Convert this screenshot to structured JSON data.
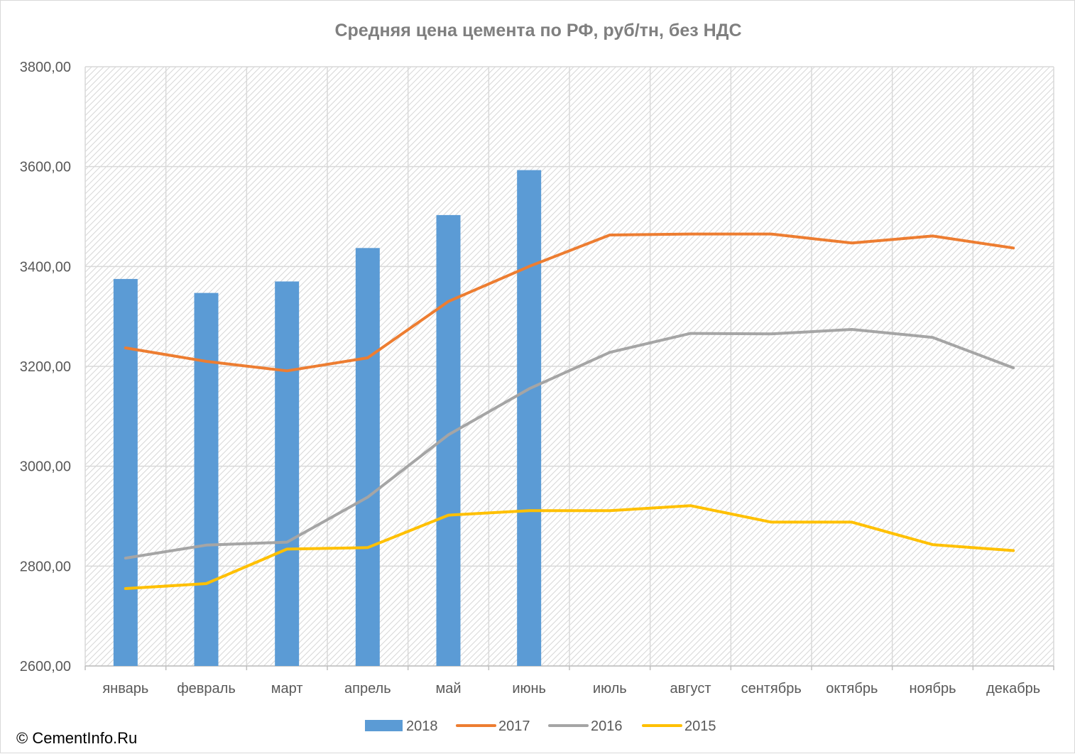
{
  "chart_data": {
    "type": "bar+line",
    "title": "Средняя цена цемента по РФ, руб/тн, без НДС",
    "xlabel": "",
    "ylabel": "",
    "ylim": [
      2600,
      3800
    ],
    "yticks": [
      "2600,00",
      "2800,00",
      "3000,00",
      "3200,00",
      "3400,00",
      "3600,00",
      "3800,00"
    ],
    "ytick_values": [
      2600,
      2800,
      3000,
      3200,
      3400,
      3600,
      3800
    ],
    "categories": [
      "январь",
      "февраль",
      "март",
      "апрель",
      "май",
      "июнь",
      "июль",
      "август",
      "сентябрь",
      "октябрь",
      "ноябрь",
      "декабрь"
    ],
    "grid": true,
    "legend_position": "bottom",
    "series": [
      {
        "name": "2018",
        "kind": "bar",
        "color": "#5B9BD5",
        "values": [
          3375,
          3347,
          3370,
          3437,
          3503,
          3593,
          null,
          null,
          null,
          null,
          null,
          null
        ]
      },
      {
        "name": "2017",
        "kind": "line",
        "color": "#ED7D31",
        "values": [
          3237,
          3210,
          3191,
          3217,
          3330,
          3400,
          3463,
          3465,
          3465,
          3447,
          3461,
          3437
        ]
      },
      {
        "name": "2016",
        "kind": "line",
        "color": "#A5A5A5",
        "values": [
          2816,
          2842,
          2848,
          2938,
          3063,
          3155,
          3228,
          3266,
          3265,
          3274,
          3258,
          3197
        ]
      },
      {
        "name": "2015",
        "kind": "line",
        "color": "#FFC000",
        "values": [
          2755,
          2765,
          2834,
          2837,
          2902,
          2911,
          2911,
          2921,
          2888,
          2888,
          2843,
          2831
        ]
      }
    ]
  },
  "copyright": "© CementInfo.Ru"
}
